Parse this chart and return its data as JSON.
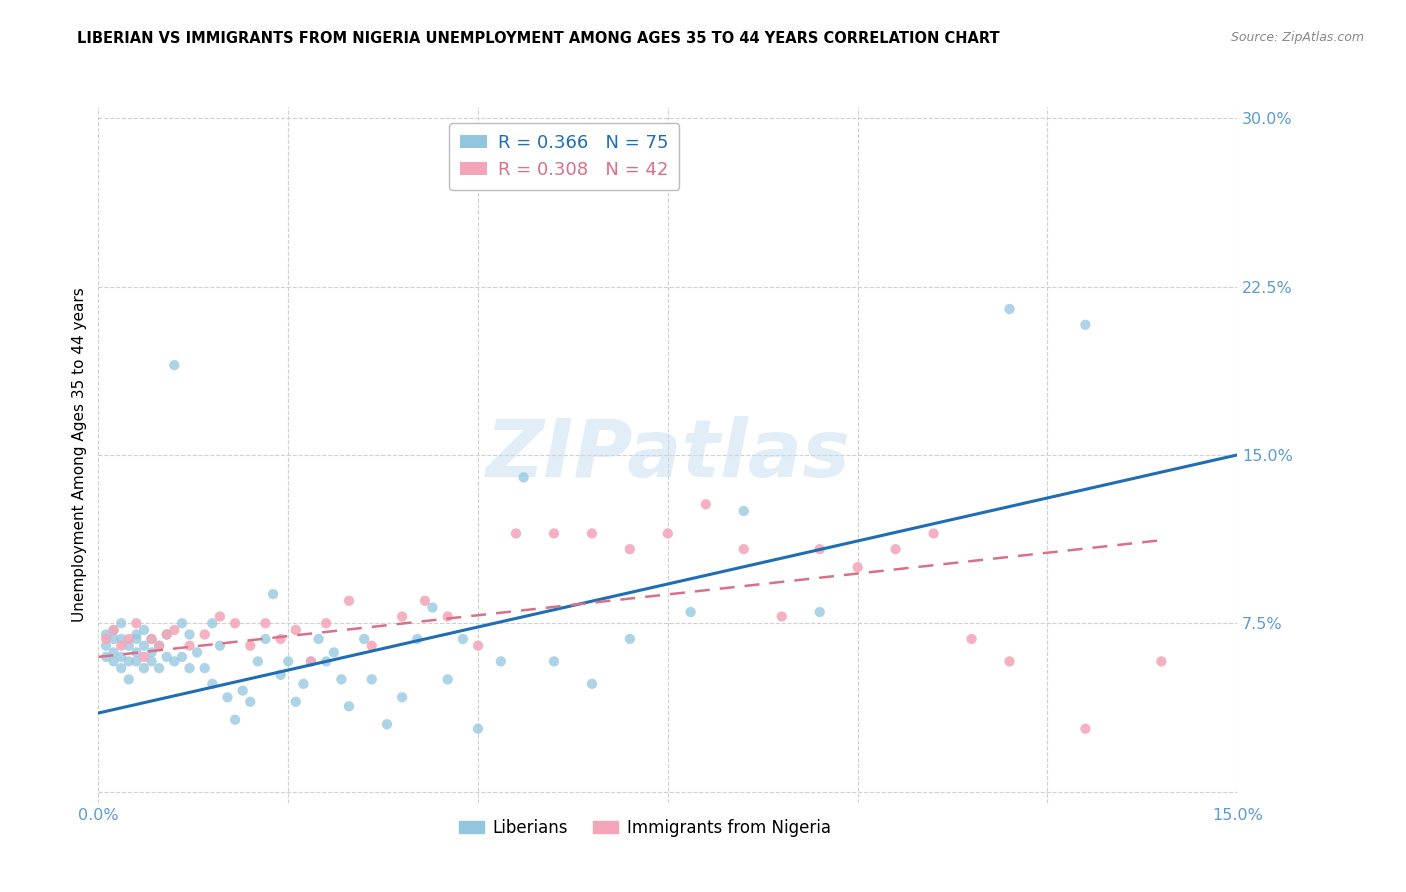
{
  "title": "LIBERIAN VS IMMIGRANTS FROM NIGERIA UNEMPLOYMENT AMONG AGES 35 TO 44 YEARS CORRELATION CHART",
  "source": "Source: ZipAtlas.com",
  "ylabel_label": "Unemployment Among Ages 35 to 44 years",
  "xlim": [
    0.0,
    0.15
  ],
  "ylim": [
    -0.005,
    0.305
  ],
  "xtick_positions": [
    0.0,
    0.025,
    0.05,
    0.075,
    0.1,
    0.125,
    0.15
  ],
  "xtick_labels": [
    "0.0%",
    "",
    "",
    "",
    "",
    "",
    "15.0%"
  ],
  "ytick_positions": [
    0.0,
    0.075,
    0.15,
    0.225,
    0.3
  ],
  "ytick_labels": [
    "",
    "7.5%",
    "15.0%",
    "22.5%",
    "30.0%"
  ],
  "legend_entries": [
    {
      "label": "R = 0.366   N = 75",
      "color": "#92c5de"
    },
    {
      "label": "R = 0.308   N = 42",
      "color": "#f4a4b8"
    }
  ],
  "liberian_color": "#92c5de",
  "nigeria_color": "#f4a4b8",
  "liberian_line_color": "#1f6eb5",
  "nigeria_line_color": "#d9708a",
  "watermark_text": "ZIPatlas",
  "liberian_scatter_x": [
    0.001,
    0.001,
    0.001,
    0.002,
    0.002,
    0.002,
    0.002,
    0.003,
    0.003,
    0.003,
    0.003,
    0.004,
    0.004,
    0.004,
    0.005,
    0.005,
    0.005,
    0.005,
    0.006,
    0.006,
    0.006,
    0.007,
    0.007,
    0.007,
    0.008,
    0.008,
    0.009,
    0.009,
    0.01,
    0.01,
    0.011,
    0.011,
    0.012,
    0.012,
    0.013,
    0.014,
    0.015,
    0.015,
    0.016,
    0.017,
    0.018,
    0.019,
    0.02,
    0.021,
    0.022,
    0.023,
    0.024,
    0.025,
    0.026,
    0.027,
    0.028,
    0.029,
    0.03,
    0.031,
    0.032,
    0.033,
    0.035,
    0.036,
    0.038,
    0.04,
    0.042,
    0.044,
    0.046,
    0.048,
    0.05,
    0.053,
    0.056,
    0.06,
    0.065,
    0.07,
    0.078,
    0.085,
    0.095,
    0.12,
    0.13
  ],
  "liberian_scatter_y": [
    0.065,
    0.07,
    0.06,
    0.068,
    0.058,
    0.072,
    0.062,
    0.06,
    0.055,
    0.068,
    0.075,
    0.058,
    0.065,
    0.05,
    0.062,
    0.07,
    0.058,
    0.068,
    0.065,
    0.055,
    0.072,
    0.062,
    0.058,
    0.068,
    0.055,
    0.065,
    0.06,
    0.07,
    0.058,
    0.19,
    0.075,
    0.06,
    0.055,
    0.07,
    0.062,
    0.055,
    0.048,
    0.075,
    0.065,
    0.042,
    0.032,
    0.045,
    0.04,
    0.058,
    0.068,
    0.088,
    0.052,
    0.058,
    0.04,
    0.048,
    0.058,
    0.068,
    0.058,
    0.062,
    0.05,
    0.038,
    0.068,
    0.05,
    0.03,
    0.042,
    0.068,
    0.082,
    0.05,
    0.068,
    0.028,
    0.058,
    0.14,
    0.058,
    0.048,
    0.068,
    0.08,
    0.125,
    0.08,
    0.215,
    0.208
  ],
  "nigeria_scatter_x": [
    0.001,
    0.002,
    0.003,
    0.004,
    0.005,
    0.006,
    0.007,
    0.008,
    0.009,
    0.01,
    0.012,
    0.014,
    0.016,
    0.018,
    0.02,
    0.022,
    0.024,
    0.026,
    0.028,
    0.03,
    0.033,
    0.036,
    0.04,
    0.043,
    0.046,
    0.05,
    0.055,
    0.06,
    0.065,
    0.07,
    0.075,
    0.08,
    0.085,
    0.09,
    0.095,
    0.1,
    0.105,
    0.11,
    0.115,
    0.12,
    0.13,
    0.14
  ],
  "nigeria_scatter_y": [
    0.068,
    0.072,
    0.065,
    0.068,
    0.075,
    0.06,
    0.068,
    0.065,
    0.07,
    0.072,
    0.065,
    0.07,
    0.078,
    0.075,
    0.065,
    0.075,
    0.068,
    0.072,
    0.058,
    0.075,
    0.085,
    0.065,
    0.078,
    0.085,
    0.078,
    0.065,
    0.115,
    0.115,
    0.115,
    0.108,
    0.115,
    0.128,
    0.108,
    0.078,
    0.108,
    0.1,
    0.108,
    0.115,
    0.068,
    0.058,
    0.028,
    0.058
  ],
  "liberian_trend_x": [
    0.0,
    0.15
  ],
  "liberian_trend_y": [
    0.035,
    0.15
  ],
  "nigeria_trend_x": [
    0.0,
    0.14
  ],
  "nigeria_trend_y": [
    0.06,
    0.112
  ],
  "background_color": "#ffffff",
  "grid_color": "#d0d0d0",
  "title_fontsize": 10.5,
  "tick_fontsize": 11.5,
  "ylabel_fontsize": 11,
  "tick_color": "#5b9bd5",
  "source_fontsize": 9
}
